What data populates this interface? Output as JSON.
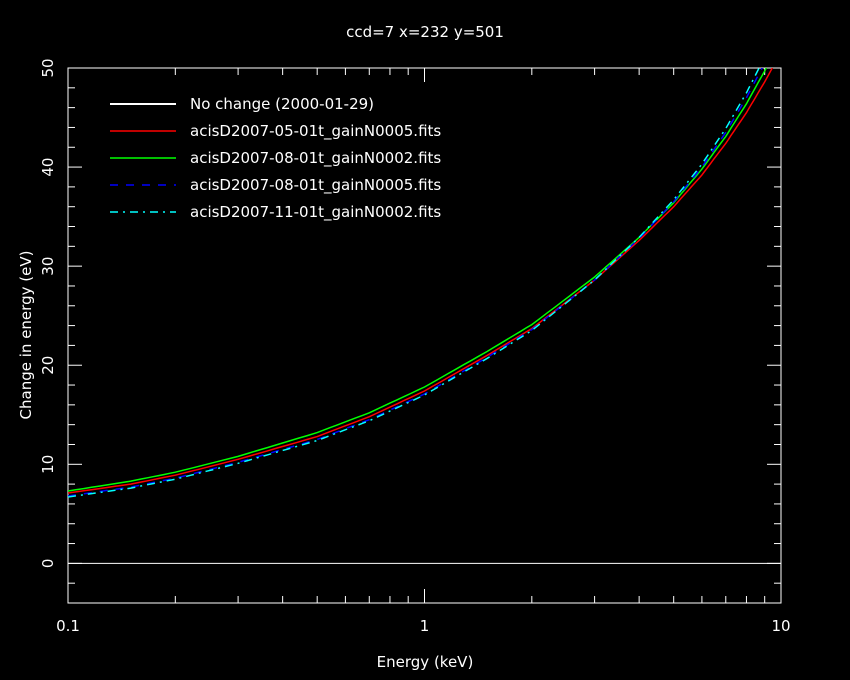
{
  "chart_data": {
    "type": "line",
    "title": "ccd=7 x=232 y=501",
    "xlabel": "Energy (keV)",
    "ylabel": "Change in energy (eV)",
    "xscale": "log",
    "xlim": [
      0.1,
      10
    ],
    "ylim": [
      -4,
      50
    ],
    "xticks": [
      {
        "v": 0.1,
        "label": "0.1"
      },
      {
        "v": 1,
        "label": "1"
      },
      {
        "v": 10,
        "label": "10"
      }
    ],
    "yticks": [
      {
        "v": 0,
        "label": "0"
      },
      {
        "v": 10,
        "label": "10"
      },
      {
        "v": 20,
        "label": "20"
      },
      {
        "v": 30,
        "label": "30"
      },
      {
        "v": 40,
        "label": "40"
      },
      {
        "v": 50,
        "label": "50"
      }
    ],
    "legend_position": "top-left",
    "x": [
      0.1,
      0.15,
      0.2,
      0.3,
      0.5,
      0.7,
      1,
      1.5,
      2,
      3,
      4,
      5,
      6,
      7,
      8,
      9,
      10
    ],
    "series": [
      {
        "name": "No change (2000-01-29)",
        "color": "#ffffff",
        "dash": "",
        "values": [
          0,
          0,
          0,
          0,
          0,
          0,
          0,
          0,
          0,
          0,
          0,
          0,
          0,
          0,
          0,
          0,
          0
        ]
      },
      {
        "name": "acisD2007-05-01t_gainN0005.fits",
        "color": "#ff0000",
        "dash": "",
        "values": [
          7.1,
          8.0,
          8.9,
          10.5,
          12.8,
          14.8,
          17.4,
          21.0,
          23.7,
          28.6,
          32.6,
          36.0,
          39.2,
          42.4,
          45.5,
          48.6,
          51.6
        ]
      },
      {
        "name": "acisD2007-08-01t_gainN0002.fits",
        "color": "#00ff00",
        "dash": "",
        "values": [
          7.3,
          8.3,
          9.2,
          10.8,
          13.2,
          15.2,
          17.8,
          21.4,
          24.1,
          28.9,
          32.9,
          36.4,
          39.8,
          43.1,
          46.4,
          49.7,
          53.0
        ]
      },
      {
        "name": "acisD2007-08-01t_gainN0005.fits",
        "color": "#0000ff",
        "dash": "8,8",
        "values": [
          6.8,
          7.7,
          8.6,
          10.2,
          12.5,
          14.5,
          17.1,
          20.8,
          23.6,
          28.6,
          32.8,
          36.5,
          40.0,
          43.5,
          47.0,
          50.5,
          54.0
        ]
      },
      {
        "name": "acisD2007-11-01t_gainN0002.fits",
        "color": "#00ffff",
        "dash": "8,5,2,5",
        "values": [
          6.7,
          7.6,
          8.5,
          10.1,
          12.4,
          14.4,
          17.0,
          20.7,
          23.5,
          28.6,
          32.9,
          36.7,
          40.3,
          43.9,
          47.5,
          51.1,
          54.7
        ]
      }
    ]
  }
}
